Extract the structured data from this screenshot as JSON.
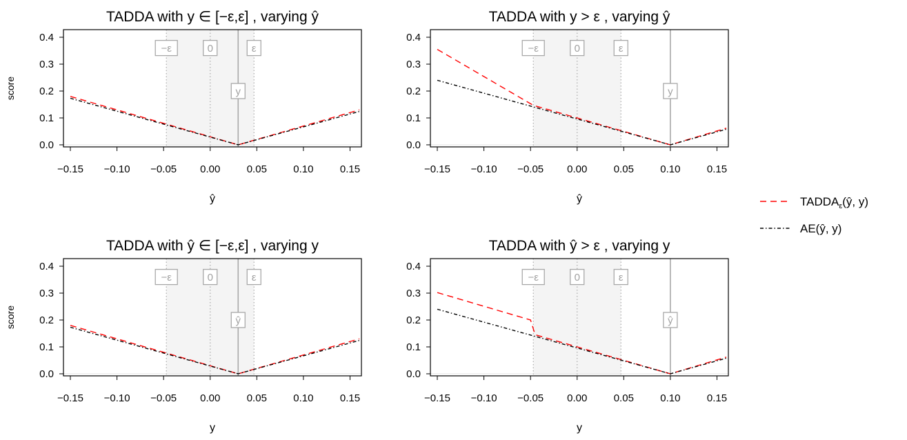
{
  "chart_data": [
    {
      "type": "line",
      "title": "TADDA with y ∈ [−ε,ε] , varying ŷ",
      "xlabel": "ŷ",
      "ylabel": "score",
      "xlim": [
        -0.15,
        0.16
      ],
      "ylim": [
        0,
        0.4
      ],
      "xticks": [
        "−0.15",
        "−0.10",
        "−0.05",
        "0.00",
        "0.05",
        "0.10",
        "0.15"
      ],
      "xtick_values": [
        -0.15,
        -0.1,
        -0.05,
        0.0,
        0.05,
        0.1,
        0.15
      ],
      "yticks": [
        "0.0",
        "0.1",
        "0.2",
        "0.3",
        "0.4"
      ],
      "ytick_values": [
        0,
        0.1,
        0.2,
        0.3,
        0.4
      ],
      "shaded_region": [
        -0.047,
        0.047
      ],
      "dotted_lines": [
        -0.047,
        0.0,
        0.047
      ],
      "reference_line": 0.03,
      "box_labels": [
        {
          "text": "−ε",
          "x": -0.047,
          "y": 0.36
        },
        {
          "text": "0",
          "x": 0.0,
          "y": 0.36
        },
        {
          "text": "ε",
          "x": 0.047,
          "y": 0.36
        },
        {
          "text": "y",
          "x": 0.03,
          "y": 0.2
        }
      ],
      "series": [
        {
          "legend_ref": "tadda",
          "x": [
            -0.15,
            0.03,
            0.16
          ],
          "y": [
            0.18,
            0.0,
            0.13
          ]
        },
        {
          "legend_ref": "ae",
          "x": [
            -0.15,
            0.03,
            0.16
          ],
          "y": [
            0.173,
            0.0,
            0.124
          ]
        }
      ]
    },
    {
      "type": "line",
      "title": "TADDA with y > ε , varying ŷ",
      "xlabel": "ŷ",
      "ylabel": "",
      "xlim": [
        -0.15,
        0.16
      ],
      "ylim": [
        0,
        0.4
      ],
      "xticks": [
        "−0.15",
        "−0.10",
        "−0.05",
        "0.00",
        "0.05",
        "0.10",
        "0.15"
      ],
      "xtick_values": [
        -0.15,
        -0.1,
        -0.05,
        0.0,
        0.05,
        0.1,
        0.15
      ],
      "yticks": [
        "0.0",
        "0.1",
        "0.2",
        "0.3",
        "0.4"
      ],
      "ytick_values": [
        0,
        0.1,
        0.2,
        0.3,
        0.4
      ],
      "shaded_region": [
        -0.047,
        0.047
      ],
      "dotted_lines": [
        -0.047,
        0.0,
        0.047
      ],
      "reference_line": 0.1,
      "box_labels": [
        {
          "text": "−ε",
          "x": -0.047,
          "y": 0.36
        },
        {
          "text": "0",
          "x": 0.0,
          "y": 0.36
        },
        {
          "text": "ε",
          "x": 0.047,
          "y": 0.36
        },
        {
          "text": "y",
          "x": 0.1,
          "y": 0.2
        }
      ],
      "series": [
        {
          "legend_ref": "tadda",
          "x": [
            -0.15,
            -0.047,
            0.1,
            0.16
          ],
          "y": [
            0.355,
            0.147,
            0.0,
            0.062
          ]
        },
        {
          "legend_ref": "ae",
          "x": [
            -0.15,
            0.1,
            0.16
          ],
          "y": [
            0.24,
            0.0,
            0.058
          ]
        }
      ]
    },
    {
      "type": "line",
      "title": "TADDA with ŷ ∈ [−ε,ε] , varying y",
      "xlabel": "y",
      "ylabel": "score",
      "xlim": [
        -0.15,
        0.16
      ],
      "ylim": [
        0,
        0.4
      ],
      "xticks": [
        "−0.15",
        "−0.10",
        "−0.05",
        "0.00",
        "0.05",
        "0.10",
        "0.15"
      ],
      "xtick_values": [
        -0.15,
        -0.1,
        -0.05,
        0.0,
        0.05,
        0.1,
        0.15
      ],
      "yticks": [
        "0.0",
        "0.1",
        "0.2",
        "0.3",
        "0.4"
      ],
      "ytick_values": [
        0,
        0.1,
        0.2,
        0.3,
        0.4
      ],
      "shaded_region": [
        -0.047,
        0.047
      ],
      "dotted_lines": [
        -0.047,
        0.0,
        0.047
      ],
      "reference_line": 0.03,
      "box_labels": [
        {
          "text": "−ε",
          "x": -0.047,
          "y": 0.36
        },
        {
          "text": "0",
          "x": 0.0,
          "y": 0.36
        },
        {
          "text": "ε",
          "x": 0.047,
          "y": 0.36
        },
        {
          "text": "ŷ",
          "x": 0.03,
          "y": 0.2
        }
      ],
      "series": [
        {
          "legend_ref": "tadda",
          "x": [
            -0.15,
            0.03,
            0.16
          ],
          "y": [
            0.18,
            0.0,
            0.13
          ]
        },
        {
          "legend_ref": "ae",
          "x": [
            -0.15,
            0.03,
            0.16
          ],
          "y": [
            0.173,
            0.0,
            0.124
          ]
        }
      ]
    },
    {
      "type": "line",
      "title": "TADDA with ŷ > ε , varying y",
      "xlabel": "y",
      "ylabel": "",
      "xlim": [
        -0.15,
        0.16
      ],
      "ylim": [
        0,
        0.4
      ],
      "xticks": [
        "−0.15",
        "−0.10",
        "−0.05",
        "0.00",
        "0.05",
        "0.10",
        "0.15"
      ],
      "xtick_values": [
        -0.15,
        -0.1,
        -0.05,
        0.0,
        0.05,
        0.1,
        0.15
      ],
      "yticks": [
        "0.0",
        "0.1",
        "0.2",
        "0.3",
        "0.4"
      ],
      "ytick_values": [
        0,
        0.1,
        0.2,
        0.3,
        0.4
      ],
      "shaded_region": [
        -0.047,
        0.047
      ],
      "dotted_lines": [
        -0.047,
        0.0,
        0.047
      ],
      "reference_line": 0.1,
      "box_labels": [
        {
          "text": "−ε",
          "x": -0.047,
          "y": 0.36
        },
        {
          "text": "0",
          "x": 0.0,
          "y": 0.36
        },
        {
          "text": "ε",
          "x": 0.047,
          "y": 0.36
        },
        {
          "text": "ŷ",
          "x": 0.1,
          "y": 0.2
        }
      ],
      "series": [
        {
          "legend_ref": "tadda",
          "x": [
            -0.15,
            -0.05,
            -0.045,
            0.1,
            0.16
          ],
          "y": [
            0.302,
            0.2,
            0.145,
            0.0,
            0.062
          ]
        },
        {
          "legend_ref": "ae",
          "x": [
            -0.15,
            0.1,
            0.16
          ],
          "y": [
            0.24,
            0.0,
            0.058
          ]
        }
      ]
    }
  ],
  "legend": {
    "placement": "right",
    "items": [
      {
        "key": "tadda",
        "label": "TADDA",
        "subscript": "ε",
        "suffix": "(ŷ, y)",
        "color": "#ff0000",
        "dash": "9,6"
      },
      {
        "key": "ae",
        "label": "AE(ŷ, y)",
        "subscript": "",
        "suffix": "",
        "color": "#000000",
        "dash": "5,3,1.5,3"
      }
    ]
  },
  "colors": {
    "tadda": "#ff0000",
    "ae": "#000000",
    "shade": "#f4f4f4",
    "guide": "#a8a8a8",
    "box": "#a8a8a8"
  }
}
